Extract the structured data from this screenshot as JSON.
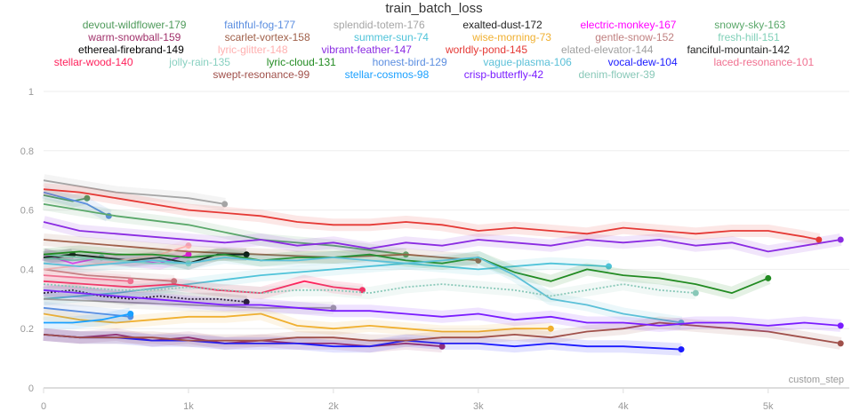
{
  "chart_data": {
    "type": "line",
    "title": "train_batch_loss",
    "xlabel": "custom_step",
    "ylabel": "",
    "xlim": [
      0,
      5560
    ],
    "ylim": [
      0,
      1
    ],
    "grid": true,
    "legend": "top",
    "x_ticks": [
      "0",
      "1k",
      "2k",
      "3k",
      "4k",
      "5k"
    ],
    "x_tick_values": [
      0,
      1000,
      2000,
      3000,
      4000,
      5000
    ],
    "y_ticks": [
      "0",
      "0.2",
      "0.4",
      "0.6",
      "0.8",
      "1"
    ],
    "y_tick_values": [
      0,
      0.2,
      0.4,
      0.6,
      0.8,
      1
    ],
    "series": [
      {
        "name": "devout-wildflower-179",
        "color": "#4e9a5a",
        "x": [
          0,
          100,
          200,
          300
        ],
        "y": [
          0.65,
          0.64,
          0.63,
          0.64
        ]
      },
      {
        "name": "faithful-fog-177",
        "color": "#5b8ee0",
        "x": [
          0,
          150,
          300,
          450
        ],
        "y": [
          0.66,
          0.64,
          0.62,
          0.58
        ]
      },
      {
        "name": "splendid-totem-176",
        "color": "#a5a5a5",
        "x": [
          0,
          250,
          500,
          750,
          1000,
          1250
        ],
        "y": [
          0.7,
          0.68,
          0.66,
          0.65,
          0.64,
          0.62
        ]
      },
      {
        "name": "exalted-dust-172",
        "color": "#222222",
        "x": [
          0,
          100,
          200
        ],
        "y": [
          0.45,
          0.44,
          0.45
        ]
      },
      {
        "name": "electric-monkey-167",
        "color": "#ff00ff",
        "x": [
          0,
          200,
          400,
          600,
          800,
          1000
        ],
        "y": [
          0.45,
          0.42,
          0.44,
          0.43,
          0.42,
          0.45
        ]
      },
      {
        "name": "snowy-sky-163",
        "color": "#5aa86a",
        "x": [
          0,
          500,
          1000,
          1500,
          2000,
          2500
        ],
        "y": [
          0.62,
          0.58,
          0.55,
          0.5,
          0.48,
          0.45
        ]
      },
      {
        "name": "warm-snowball-159",
        "color": "#a0306a",
        "x": [
          0,
          250,
          500,
          750,
          1000,
          1250,
          1500,
          1750,
          2000,
          2250,
          2500,
          2750
        ],
        "y": [
          0.18,
          0.17,
          0.18,
          0.16,
          0.17,
          0.15,
          0.16,
          0.15,
          0.15,
          0.14,
          0.15,
          0.14
        ]
      },
      {
        "name": "scarlet-vortex-158",
        "color": "#a0604a",
        "x": [
          0,
          500,
          1000,
          1500,
          2000,
          2500,
          3000
        ],
        "y": [
          0.5,
          0.48,
          0.46,
          0.45,
          0.44,
          0.45,
          0.43
        ]
      },
      {
        "name": "summer-sun-74",
        "color": "#4fc3d9",
        "x": [
          0,
          500,
          1000,
          1500,
          2000,
          2500,
          3000,
          3500,
          3900
        ],
        "y": [
          0.3,
          0.32,
          0.35,
          0.38,
          0.4,
          0.42,
          0.4,
          0.42,
          0.41
        ]
      },
      {
        "name": "wise-morning-73",
        "color": "#f0b030",
        "x": [
          0,
          250,
          500,
          750,
          1000,
          1250,
          1500,
          1750,
          2000,
          2250,
          2500,
          2750,
          3000,
          3250,
          3500
        ],
        "y": [
          0.25,
          0.23,
          0.22,
          0.23,
          0.24,
          0.24,
          0.25,
          0.21,
          0.2,
          0.21,
          0.2,
          0.19,
          0.19,
          0.2,
          0.2
        ]
      },
      {
        "name": "gentle-snow-152",
        "color": "#c08080",
        "x": [
          0,
          300,
          600,
          900
        ],
        "y": [
          0.4,
          0.38,
          0.37,
          0.36
        ]
      },
      {
        "name": "fresh-hill-151",
        "color": "#80d0b8",
        "x": [
          0,
          200,
          400
        ],
        "y": [
          0.44,
          0.43,
          0.44
        ]
      },
      {
        "name": "ethereal-firebrand-149",
        "color": "#000000",
        "x": [
          0,
          200,
          400,
          600,
          800,
          1000,
          1200,
          1400
        ],
        "y": [
          0.44,
          0.45,
          0.44,
          0.43,
          0.44,
          0.42,
          0.45,
          0.45
        ]
      },
      {
        "name": "lyric-glitter-148",
        "color": "#ffb0b0",
        "x": [
          0,
          400,
          800,
          1000
        ],
        "y": [
          0.4,
          0.42,
          0.45,
          0.48
        ]
      },
      {
        "name": "vibrant-feather-147",
        "color": "#8a2be2",
        "x": [
          0,
          250,
          500,
          750,
          1000,
          1250,
          1500,
          1750,
          2000,
          2250,
          2500,
          2750,
          3000,
          3250,
          3500,
          3750,
          4000,
          4250,
          4500,
          4750,
          5000,
          5250,
          5500
        ],
        "y": [
          0.56,
          0.53,
          0.52,
          0.51,
          0.5,
          0.49,
          0.5,
          0.48,
          0.49,
          0.47,
          0.49,
          0.48,
          0.5,
          0.49,
          0.48,
          0.5,
          0.49,
          0.5,
          0.48,
          0.49,
          0.46,
          0.48,
          0.5
        ]
      },
      {
        "name": "worldly-pond-145",
        "color": "#e53935",
        "x": [
          0,
          250,
          500,
          750,
          1000,
          1250,
          1500,
          1750,
          2000,
          2250,
          2500,
          2750,
          3000,
          3250,
          3500,
          3750,
          4000,
          4250,
          4500,
          4750,
          5000,
          5250,
          5350
        ],
        "y": [
          0.67,
          0.66,
          0.64,
          0.62,
          0.6,
          0.59,
          0.58,
          0.56,
          0.55,
          0.55,
          0.56,
          0.55,
          0.53,
          0.54,
          0.53,
          0.52,
          0.54,
          0.53,
          0.52,
          0.53,
          0.53,
          0.51,
          0.5
        ]
      },
      {
        "name": "elated-elevator-144",
        "color": "#a0a0a0",
        "x": [
          0,
          500,
          1000,
          1500,
          2000
        ],
        "y": [
          0.3,
          0.29,
          0.28,
          0.27,
          0.27
        ]
      },
      {
        "name": "fanciful-mountain-142",
        "color": "#222222",
        "dash": true,
        "x": [
          0,
          200,
          400,
          600,
          800,
          1000,
          1200,
          1400
        ],
        "y": [
          0.32,
          0.33,
          0.31,
          0.3,
          0.31,
          0.3,
          0.3,
          0.29
        ]
      },
      {
        "name": "stellar-wood-140",
        "color": "#ff1f5a",
        "x": [
          0,
          300,
          600,
          900,
          1200,
          1500,
          1800,
          2000,
          2200
        ],
        "y": [
          0.36,
          0.35,
          0.34,
          0.35,
          0.33,
          0.32,
          0.36,
          0.34,
          0.33
        ]
      },
      {
        "name": "jolly-rain-135",
        "color": "#88d0c0",
        "x": [
          0,
          250,
          500,
          750,
          1000
        ],
        "y": [
          0.45,
          0.44,
          0.43,
          0.42,
          0.42
        ]
      },
      {
        "name": "lyric-cloud-131",
        "color": "#228b22",
        "x": [
          0,
          250,
          500,
          750,
          1000,
          1250,
          1500,
          1750,
          2000,
          2250,
          2500,
          2750,
          3000,
          3250,
          3500,
          3750,
          4000,
          4250,
          4500,
          4750,
          5000
        ],
        "y": [
          0.45,
          0.46,
          0.45,
          0.45,
          0.44,
          0.45,
          0.43,
          0.44,
          0.44,
          0.45,
          0.43,
          0.42,
          0.44,
          0.39,
          0.36,
          0.4,
          0.38,
          0.37,
          0.35,
          0.32,
          0.37
        ]
      },
      {
        "name": "honest-bird-129",
        "color": "#5b8ee0",
        "x": [
          0,
          200,
          400,
          600
        ],
        "y": [
          0.27,
          0.26,
          0.25,
          0.24
        ]
      },
      {
        "name": "vague-plasma-106",
        "color": "#5bc0d8",
        "x": [
          0,
          250,
          500,
          750,
          1000,
          1250,
          1500,
          1750,
          2000,
          2250,
          2500,
          2750,
          3000,
          3250,
          3500,
          3750,
          4000,
          4400
        ],
        "y": [
          0.42,
          0.41,
          0.42,
          0.43,
          0.42,
          0.44,
          0.43,
          0.43,
          0.44,
          0.43,
          0.42,
          0.43,
          0.44,
          0.38,
          0.3,
          0.28,
          0.25,
          0.22
        ]
      },
      {
        "name": "vocal-dew-104",
        "color": "#1a1aff",
        "x": [
          0,
          250,
          500,
          750,
          1000,
          1250,
          1500,
          1750,
          2000,
          2250,
          2500,
          2750,
          3000,
          3250,
          3500,
          3750,
          4000,
          4400
        ],
        "y": [
          0.18,
          0.17,
          0.17,
          0.16,
          0.16,
          0.15,
          0.15,
          0.15,
          0.14,
          0.14,
          0.16,
          0.15,
          0.15,
          0.14,
          0.15,
          0.14,
          0.14,
          0.13
        ]
      },
      {
        "name": "laced-resonance-101",
        "color": "#f07090",
        "x": [
          0,
          300,
          600
        ],
        "y": [
          0.38,
          0.37,
          0.36
        ]
      },
      {
        "name": "swept-resonance-99",
        "color": "#a0504a",
        "x": [
          0,
          250,
          500,
          750,
          1000,
          1250,
          1500,
          1750,
          2000,
          2250,
          2500,
          2750,
          3000,
          3250,
          3500,
          3750,
          4000,
          4250,
          4500,
          4750,
          5000,
          5250,
          5500
        ],
        "y": [
          0.18,
          0.17,
          0.17,
          0.17,
          0.16,
          0.16,
          0.16,
          0.17,
          0.17,
          0.16,
          0.16,
          0.17,
          0.17,
          0.18,
          0.17,
          0.19,
          0.2,
          0.22,
          0.21,
          0.2,
          0.19,
          0.17,
          0.15
        ]
      },
      {
        "name": "stellar-cosmos-98",
        "color": "#1aa0ff",
        "x": [
          0,
          200,
          400,
          600
        ],
        "y": [
          0.22,
          0.22,
          0.23,
          0.25
        ]
      },
      {
        "name": "crisp-butterfly-42",
        "color": "#7a1cff",
        "x": [
          0,
          250,
          500,
          750,
          1000,
          1250,
          1500,
          1750,
          2000,
          2250,
          2500,
          2750,
          3000,
          3250,
          3500,
          3750,
          4000,
          4250,
          4500,
          4750,
          5000,
          5250,
          5500
        ],
        "y": [
          0.33,
          0.32,
          0.31,
          0.3,
          0.29,
          0.28,
          0.28,
          0.27,
          0.26,
          0.26,
          0.25,
          0.24,
          0.25,
          0.23,
          0.24,
          0.22,
          0.22,
          0.21,
          0.22,
          0.22,
          0.21,
          0.22,
          0.21
        ]
      },
      {
        "name": "denim-flower-39",
        "color": "#88c8b8",
        "dash": true,
        "x": [
          0,
          250,
          500,
          750,
          1000,
          1250,
          1500,
          1750,
          2000,
          2250,
          2500,
          2750,
          3000,
          3250,
          3500,
          3750,
          4000,
          4250,
          4500
        ],
        "y": [
          0.35,
          0.34,
          0.33,
          0.33,
          0.34,
          0.33,
          0.32,
          0.33,
          0.33,
          0.32,
          0.34,
          0.35,
          0.34,
          0.33,
          0.31,
          0.33,
          0.35,
          0.33,
          0.32
        ]
      }
    ]
  }
}
